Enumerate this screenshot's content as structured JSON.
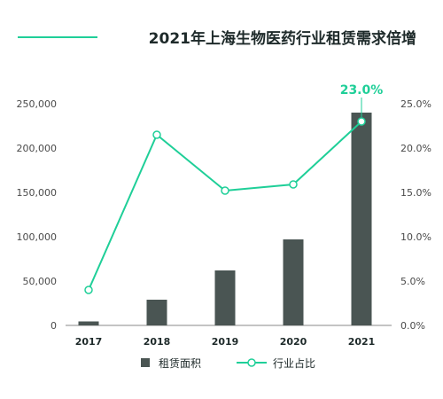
{
  "chart_data": {
    "type": "bar",
    "title": "2021年上海生物医药行业租赁需求倍增",
    "categories": [
      "2017",
      "2018",
      "2019",
      "2020",
      "2021"
    ],
    "series": [
      {
        "name": "租赁面积",
        "type": "bar",
        "axis": "left",
        "values": [
          4500,
          29000,
          62000,
          97000,
          240000
        ]
      },
      {
        "name": "行业占比",
        "type": "line",
        "axis": "right",
        "values": [
          4.0,
          21.5,
          15.2,
          15.9,
          23.0
        ]
      }
    ],
    "y_left": {
      "min": 0,
      "max": 250000,
      "ticks": [
        "0",
        "50,000",
        "100,000",
        "150,000",
        "200,000",
        "250,000"
      ]
    },
    "y_right": {
      "min": 0,
      "max": 25,
      "ticks": [
        "0.0%",
        "5.0%",
        "10.0%",
        "15.0%",
        "20.0%",
        "25.0%"
      ]
    },
    "annotation": "23.0%",
    "legend_position": "bottom",
    "grid": false,
    "colors": {
      "bar": "#4a5553",
      "line": "#1fcf98",
      "title_rule": "#1fcf98"
    }
  }
}
